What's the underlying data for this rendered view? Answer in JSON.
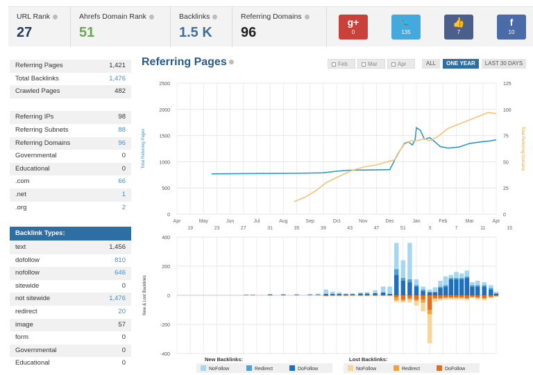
{
  "metrics": [
    {
      "label": "URL Rank",
      "value": "27",
      "color": "#1f3c5a"
    },
    {
      "label": "Ahrefs Domain Rank",
      "value": "51",
      "color": "#6aa84f"
    },
    {
      "label": "Backlinks",
      "value": "1.5 K",
      "color": "#3d6e9c"
    },
    {
      "label": "Referring Domains",
      "value": "96",
      "color": "#1f1f1f"
    }
  ],
  "social": [
    {
      "icon": "google-plus-icon",
      "glyph": "g+",
      "count": "0",
      "color": "#c8423b"
    },
    {
      "icon": "twitter-icon",
      "glyph": "🐦",
      "count": "135",
      "color": "#45a9dd"
    },
    {
      "icon": "thumbs-up-icon",
      "glyph": "👍",
      "count": "7",
      "color": "#4b5f8a"
    },
    {
      "icon": "facebook-icon",
      "glyph": "f",
      "count": "10",
      "color": "#4a6aa8"
    }
  ],
  "summary_rows": [
    {
      "label": "Referring Pages",
      "value": "1,421",
      "blue": false
    },
    {
      "label": "Total Backlinks",
      "value": "1,476",
      "blue": true
    },
    {
      "label": "Crawled Pages",
      "value": "482",
      "blue": false
    },
    {
      "label": "",
      "value": "",
      "blue": false
    },
    {
      "label": "Referring IPs",
      "value": "98",
      "blue": false
    },
    {
      "label": "Referring Subnets",
      "value": "88",
      "blue": true
    },
    {
      "label": "Referring Domains",
      "value": "96",
      "blue": true
    },
    {
      "label": "Governmental",
      "value": "0",
      "blue": false
    },
    {
      "label": "Educational",
      "value": "0",
      "blue": false
    },
    {
      "label": ".com",
      "value": "66",
      "blue": true
    },
    {
      "label": ".net",
      "value": "1",
      "blue": true
    },
    {
      "label": ".org",
      "value": "2",
      "blue": true
    }
  ],
  "backlink_types_title": "Backlink Types:",
  "backlink_types": [
    {
      "label": "text",
      "value": "1,456",
      "blue": false
    },
    {
      "label": "dofollow",
      "value": "810",
      "blue": true
    },
    {
      "label": "nofollow",
      "value": "646",
      "blue": true
    },
    {
      "label": "sitewide",
      "value": "0",
      "blue": false
    },
    {
      "label": "not sitewide",
      "value": "1,476",
      "blue": true
    },
    {
      "label": "redirect",
      "value": "20",
      "blue": true
    },
    {
      "label": "image",
      "value": "57",
      "blue": false
    },
    {
      "label": "form",
      "value": "0",
      "blue": false
    },
    {
      "label": "Governmental",
      "value": "0",
      "blue": false
    },
    {
      "label": "Educational",
      "value": "0",
      "blue": false
    }
  ],
  "chart_header": {
    "title": "Referring Pages",
    "checkboxes": [
      "Feb",
      "Mar",
      "Apr"
    ],
    "ranges": [
      {
        "label": "ALL",
        "active": false
      },
      {
        "label": "ONE YEAR",
        "active": true
      },
      {
        "label": "LAST 30 DAYS",
        "active": false
      }
    ]
  },
  "chart_data": [
    {
      "type": "line",
      "ylabel_left": "Total Referring Pages",
      "ylabel_right": "Total Referring Domains",
      "ylim_left": [
        0,
        2500
      ],
      "ylim_right": [
        0,
        125
      ],
      "yticks_left": [
        0,
        500,
        1000,
        1500,
        2000,
        2500
      ],
      "yticks_right": [
        0,
        25,
        50,
        75,
        100,
        125
      ],
      "month_labels": [
        "Apr",
        "May",
        "Jun",
        "Jul",
        "Aug",
        "Sep",
        "Oct",
        "Nov",
        "Dec",
        "Jan",
        "Feb",
        "Mar",
        "Apr"
      ],
      "week_labels": [
        "19",
        "23",
        "27",
        "31",
        "35",
        "39",
        "43",
        "47",
        "51",
        "3",
        "7",
        "11",
        "15"
      ],
      "x_range": [
        0,
        12
      ],
      "grid": true,
      "series": [
        {
          "name": "Total Referring Pages",
          "axis": "left",
          "color": "#2b95c4",
          "points": [
            [
              1.3,
              770
            ],
            [
              2.5,
              775
            ],
            [
              3.5,
              778
            ],
            [
              4.5,
              780
            ],
            [
              5.5,
              790
            ],
            [
              6.0,
              820
            ],
            [
              6.5,
              840
            ],
            [
              7.0,
              843
            ],
            [
              7.5,
              845
            ],
            [
              8.0,
              850
            ],
            [
              8.3,
              1150
            ],
            [
              8.55,
              1350
            ],
            [
              8.7,
              1380
            ],
            [
              8.85,
              1320
            ],
            [
              8.95,
              1420
            ],
            [
              9.0,
              1650
            ],
            [
              9.15,
              1600
            ],
            [
              9.3,
              1430
            ],
            [
              9.5,
              1460
            ],
            [
              9.7,
              1380
            ],
            [
              9.9,
              1290
            ],
            [
              10.2,
              1260
            ],
            [
              10.6,
              1280
            ],
            [
              11.0,
              1350
            ],
            [
              11.5,
              1385
            ],
            [
              11.8,
              1400
            ],
            [
              12.0,
              1420
            ]
          ]
        },
        {
          "name": "Total Referring Domains",
          "axis": "right",
          "color": "#f5c27a",
          "points": [
            [
              4.4,
              12
            ],
            [
              4.8,
              16
            ],
            [
              5.2,
              22
            ],
            [
              5.6,
              30
            ],
            [
              6.0,
              35
            ],
            [
              6.5,
              41
            ],
            [
              7.0,
              45
            ],
            [
              7.5,
              47
            ],
            [
              7.9,
              50
            ],
            [
              8.2,
              52
            ],
            [
              8.5,
              66
            ],
            [
              8.8,
              70
            ],
            [
              9.0,
              70
            ],
            [
              9.3,
              72
            ],
            [
              9.5,
              70
            ],
            [
              9.8,
              74
            ],
            [
              10.2,
              82
            ],
            [
              10.6,
              86
            ],
            [
              11.0,
              90
            ],
            [
              11.4,
              94
            ],
            [
              11.7,
              97
            ],
            [
              12.0,
              96
            ]
          ]
        }
      ]
    },
    {
      "type": "bar",
      "stacked": true,
      "ylabel": "New & Lost Backlinks",
      "ylim": [
        -400,
        400
      ],
      "yticks": [
        -400,
        -200,
        0,
        200,
        400
      ],
      "x_range": [
        0,
        12
      ],
      "grid": true,
      "series": [
        {
          "name": "NoFollow",
          "group": "New Backlinks",
          "color": "#a5d8f0"
        },
        {
          "name": "Redirect",
          "group": "New Backlinks",
          "color": "#4aa3d8"
        },
        {
          "name": "DoFollow",
          "group": "New Backlinks",
          "color": "#1f6fbf"
        },
        {
          "name": "NoFollow",
          "group": "Lost Backlinks",
          "color": "#f9d59b"
        },
        {
          "name": "Redirect",
          "group": "Lost Backlinks",
          "color": "#f2a23a"
        },
        {
          "name": "DoFollow",
          "group": "Lost Backlinks",
          "color": "#e0701c"
        }
      ],
      "bars": [
        {
          "x": 2.6,
          "new": [
            2,
            0,
            3
          ],
          "lost": [
            0,
            0,
            0
          ]
        },
        {
          "x": 2.85,
          "new": [
            2,
            0,
            3
          ],
          "lost": [
            0,
            0,
            0
          ]
        },
        {
          "x": 3.5,
          "new": [
            3,
            0,
            6
          ],
          "lost": [
            0,
            0,
            0
          ]
        },
        {
          "x": 4.0,
          "new": [
            4,
            0,
            5
          ],
          "lost": [
            0,
            0,
            0
          ]
        },
        {
          "x": 4.5,
          "new": [
            4,
            0,
            4
          ],
          "lost": [
            0,
            0,
            0
          ]
        },
        {
          "x": 5.0,
          "new": [
            5,
            0,
            4
          ],
          "lost": [
            0,
            0,
            0
          ]
        },
        {
          "x": 5.3,
          "new": [
            8,
            0,
            4
          ],
          "lost": [
            0,
            0,
            0
          ]
        },
        {
          "x": 5.6,
          "new": [
            30,
            0,
            10
          ],
          "lost": [
            0,
            0,
            5
          ]
        },
        {
          "x": 5.85,
          "new": [
            15,
            0,
            10
          ],
          "lost": [
            0,
            0,
            3
          ]
        },
        {
          "x": 6.1,
          "new": [
            10,
            0,
            10
          ],
          "lost": [
            0,
            0,
            3
          ]
        },
        {
          "x": 6.35,
          "new": [
            5,
            0,
            8
          ],
          "lost": [
            0,
            0,
            3
          ]
        },
        {
          "x": 6.6,
          "new": [
            5,
            0,
            8
          ],
          "lost": [
            0,
            0,
            2
          ]
        },
        {
          "x": 6.9,
          "new": [
            8,
            0,
            12
          ],
          "lost": [
            0,
            0,
            3
          ]
        },
        {
          "x": 7.15,
          "new": [
            10,
            0,
            12
          ],
          "lost": [
            0,
            0,
            3
          ]
        },
        {
          "x": 7.45,
          "new": [
            20,
            0,
            15
          ],
          "lost": [
            0,
            0,
            3
          ]
        },
        {
          "x": 7.75,
          "new": [
            40,
            0,
            20
          ],
          "lost": [
            0,
            0,
            3
          ]
        },
        {
          "x": 8.0,
          "new": [
            50,
            0,
            10
          ],
          "lost": [
            0,
            0,
            3
          ]
        },
        {
          "x": 8.25,
          "new": [
            180,
            40,
            140
          ],
          "lost": [
            10,
            20,
            15
          ]
        },
        {
          "x": 8.5,
          "new": [
            120,
            20,
            100
          ],
          "lost": [
            10,
            10,
            30
          ]
        },
        {
          "x": 8.75,
          "new": [
            250,
            20,
            90
          ],
          "lost": [
            20,
            10,
            20
          ]
        },
        {
          "x": 9.0,
          "new": [
            40,
            10,
            60
          ],
          "lost": [
            30,
            10,
            30
          ]
        },
        {
          "x": 9.25,
          "new": [
            20,
            10,
            30
          ],
          "lost": [
            60,
            20,
            30
          ]
        },
        {
          "x": 9.5,
          "new": [
            15,
            5,
            20
          ],
          "lost": [
            200,
            30,
            100
          ]
        },
        {
          "x": 9.7,
          "new": [
            30,
            5,
            20
          ],
          "lost": [
            20,
            5,
            20
          ]
        },
        {
          "x": 9.9,
          "new": [
            40,
            10,
            50
          ],
          "lost": [
            10,
            5,
            20
          ]
        },
        {
          "x": 10.1,
          "new": [
            60,
            10,
            60
          ],
          "lost": [
            10,
            5,
            15
          ]
        },
        {
          "x": 10.3,
          "new": [
            20,
            10,
            110
          ],
          "lost": [
            10,
            5,
            15
          ]
        },
        {
          "x": 10.5,
          "new": [
            40,
            10,
            110
          ],
          "lost": [
            10,
            5,
            15
          ]
        },
        {
          "x": 10.7,
          "new": [
            30,
            10,
            110
          ],
          "lost": [
            10,
            5,
            15
          ]
        },
        {
          "x": 10.9,
          "new": [
            40,
            10,
            120
          ],
          "lost": [
            10,
            5,
            20
          ]
        },
        {
          "x": 11.1,
          "new": [
            20,
            10,
            60
          ],
          "lost": [
            5,
            5,
            10
          ]
        },
        {
          "x": 11.3,
          "new": [
            30,
            10,
            60
          ],
          "lost": [
            10,
            5,
            15
          ]
        },
        {
          "x": 11.55,
          "new": [
            20,
            10,
            60
          ],
          "lost": [
            10,
            5,
            20
          ]
        },
        {
          "x": 11.8,
          "new": [
            20,
            10,
            40
          ],
          "lost": [
            5,
            5,
            10
          ]
        },
        {
          "x": 12.0,
          "new": [
            10,
            5,
            10
          ],
          "lost": [
            3,
            2,
            5
          ]
        }
      ]
    }
  ],
  "legend": {
    "new_title": "New Backlinks:",
    "lost_title": "Lost Backlinks:",
    "new_items": [
      "NoFollow",
      "Redirect",
      "DoFollow"
    ],
    "lost_items": [
      "NoFollow",
      "Redirect",
      "DoFollow"
    ]
  }
}
